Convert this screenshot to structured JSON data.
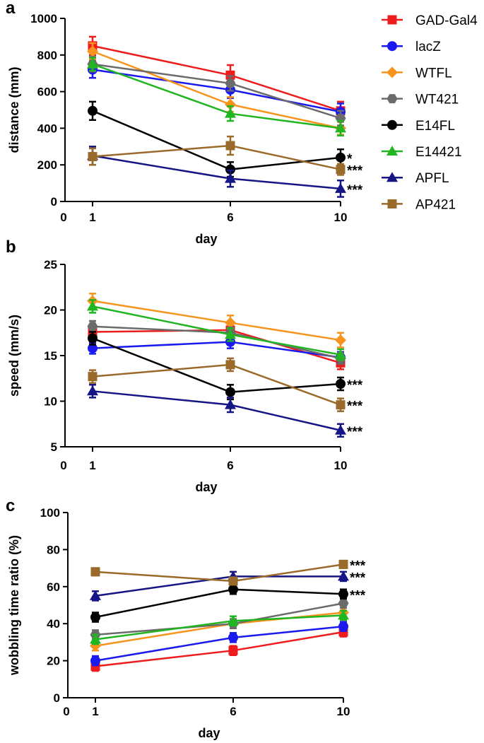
{
  "legend": [
    {
      "name": "GAD-Gal4",
      "color": "#ee1c1c",
      "marker": "square"
    },
    {
      "name": "lacZ",
      "color": "#1a1aee",
      "marker": "circle"
    },
    {
      "name": "WTFL",
      "color": "#f7941d",
      "marker": "diamond"
    },
    {
      "name": "WT421",
      "color": "#6b6b6b",
      "marker": "hexagon"
    },
    {
      "name": "E14FL",
      "color": "#000000",
      "marker": "circle"
    },
    {
      "name": "E14421",
      "color": "#21b521",
      "marker": "triangle"
    },
    {
      "name": "APFL",
      "color": "#151585",
      "marker": "triangle"
    },
    {
      "name": "AP421",
      "color": "#9a6a2a",
      "marker": "square"
    }
  ],
  "chart_data": [
    {
      "panel": "a",
      "type": "line",
      "title": "",
      "xlabel": "day",
      "ylabel": "distance (mm)",
      "x_ticks": [
        "0",
        "1",
        "6",
        "10"
      ],
      "x": [
        1,
        6,
        10
      ],
      "xlim": [
        0,
        10
      ],
      "ylim": [
        0,
        1000
      ],
      "y_ticks": [
        "0",
        "200",
        "400",
        "600",
        "800",
        "1000"
      ],
      "series": [
        {
          "name": "GAD-Gal4",
          "values": [
            850,
            690,
            495
          ],
          "errors": [
            50,
            55,
            50
          ]
        },
        {
          "name": "lacZ",
          "values": [
            720,
            610,
            490
          ],
          "errors": [
            45,
            45,
            45
          ]
        },
        {
          "name": "WTFL",
          "values": [
            820,
            530,
            400
          ],
          "errors": [
            45,
            40,
            35
          ]
        },
        {
          "name": "WT421",
          "values": [
            750,
            645,
            455
          ],
          "errors": [
            40,
            40,
            40
          ]
        },
        {
          "name": "E14FL",
          "values": [
            495,
            175,
            240
          ],
          "errors": [
            50,
            40,
            45
          ]
        },
        {
          "name": "E14421",
          "values": [
            750,
            480,
            400
          ],
          "errors": [
            35,
            40,
            40
          ]
        },
        {
          "name": "APFL",
          "values": [
            250,
            125,
            70
          ],
          "errors": [
            50,
            45,
            45
          ]
        },
        {
          "name": "AP421",
          "values": [
            245,
            305,
            175
          ],
          "errors": [
            45,
            50,
            30
          ]
        }
      ],
      "annotations": [
        {
          "text": "*",
          "x": 10,
          "y": 240
        },
        {
          "text": "***",
          "x": 10,
          "y": 175
        },
        {
          "text": "***",
          "x": 10,
          "y": 70
        }
      ]
    },
    {
      "panel": "b",
      "type": "line",
      "title": "",
      "xlabel": "day",
      "ylabel": "speed (mm/s)",
      "x_ticks": [
        "0",
        "1",
        "6",
        "10"
      ],
      "x": [
        1,
        6,
        10
      ],
      "xlim": [
        0,
        10
      ],
      "ylim": [
        5,
        25
      ],
      "y_ticks": [
        "5",
        "10",
        "15",
        "20",
        "25"
      ],
      "series": [
        {
          "name": "GAD-Gal4",
          "values": [
            17.6,
            17.8,
            14.2
          ],
          "errors": [
            0.7,
            0.7,
            0.7
          ]
        },
        {
          "name": "lacZ",
          "values": [
            15.8,
            16.5,
            14.8
          ],
          "errors": [
            0.6,
            0.7,
            0.6
          ]
        },
        {
          "name": "WTFL",
          "values": [
            21.0,
            18.6,
            16.7
          ],
          "errors": [
            0.8,
            0.8,
            0.8
          ]
        },
        {
          "name": "WT421",
          "values": [
            18.2,
            17.5,
            14.7
          ],
          "errors": [
            0.6,
            0.6,
            0.6
          ]
        },
        {
          "name": "E14FL",
          "values": [
            16.9,
            11.0,
            11.9
          ],
          "errors": [
            0.7,
            0.8,
            0.7
          ]
        },
        {
          "name": "E14421",
          "values": [
            20.4,
            17.3,
            15.1
          ],
          "errors": [
            0.7,
            0.7,
            0.6
          ]
        },
        {
          "name": "APFL",
          "values": [
            11.1,
            9.6,
            6.8
          ],
          "errors": [
            0.7,
            0.8,
            0.7
          ]
        },
        {
          "name": "AP421",
          "values": [
            12.7,
            14.0,
            9.6
          ],
          "errors": [
            0.7,
            0.7,
            0.7
          ]
        }
      ],
      "annotations": [
        {
          "text": "***",
          "x": 10,
          "y": 11.9
        },
        {
          "text": "***",
          "x": 10,
          "y": 9.6
        },
        {
          "text": "***",
          "x": 10,
          "y": 6.8
        }
      ]
    },
    {
      "panel": "c",
      "type": "line",
      "title": "",
      "xlabel": "day",
      "ylabel": "wobbling time ratio (%)",
      "x_ticks": [
        "0",
        "1",
        "6",
        "10"
      ],
      "x": [
        1,
        6,
        10
      ],
      "xlim": [
        0,
        10
      ],
      "ylim": [
        0,
        100
      ],
      "y_ticks": [
        "0",
        "20",
        "40",
        "60",
        "80",
        "100"
      ],
      "series": [
        {
          "name": "GAD-Gal4",
          "values": [
            17,
            25.5,
            35.5
          ],
          "errors": [
            2.5,
            2.5,
            2.5
          ]
        },
        {
          "name": "lacZ",
          "values": [
            20,
            32.5,
            38.5
          ],
          "errors": [
            2.5,
            2.5,
            2.5
          ]
        },
        {
          "name": "WTFL",
          "values": [
            28,
            40,
            46
          ],
          "errors": [
            2.5,
            2.5,
            2.5
          ]
        },
        {
          "name": "WT421",
          "values": [
            34,
            40,
            51
          ],
          "errors": [
            2.5,
            2.5,
            2.5
          ]
        },
        {
          "name": "E14FL",
          "values": [
            43.5,
            58.5,
            56
          ],
          "errors": [
            2.5,
            2.5,
            2.5
          ]
        },
        {
          "name": "E14421",
          "values": [
            31.5,
            41.5,
            44.5
          ],
          "errors": [
            2.5,
            2.5,
            2.5
          ]
        },
        {
          "name": "APFL",
          "values": [
            55,
            65.5,
            65.5
          ],
          "errors": [
            2.5,
            2.5,
            2.5
          ]
        },
        {
          "name": "AP421",
          "values": [
            68,
            63,
            72
          ],
          "errors": [
            2,
            2,
            2
          ]
        }
      ],
      "annotations": [
        {
          "text": "***",
          "x": 10,
          "y": 72
        },
        {
          "text": "***",
          "x": 10,
          "y": 65.5
        },
        {
          "text": "***",
          "x": 10,
          "y": 56
        }
      ]
    }
  ]
}
